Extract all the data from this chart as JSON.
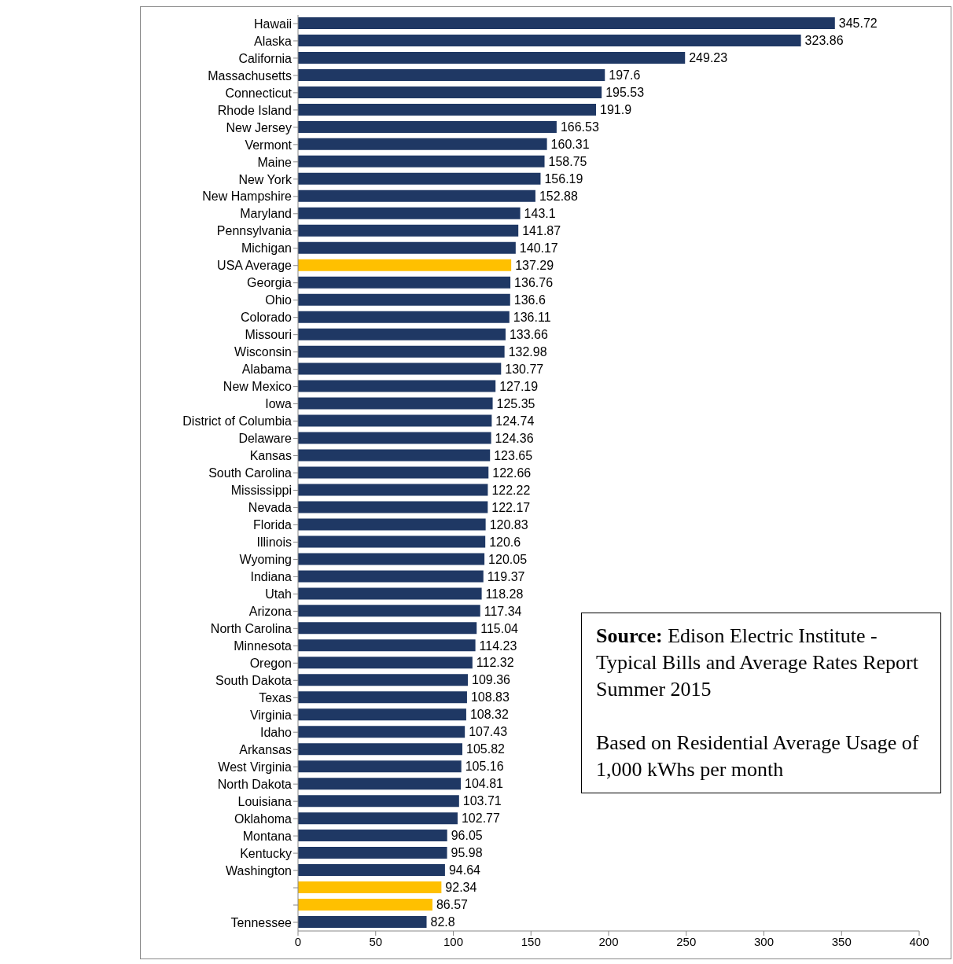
{
  "chart_data": {
    "type": "bar",
    "orientation": "horizontal",
    "categories": [
      "Hawaii",
      "Alaska",
      "California",
      "Massachusetts",
      "Connecticut",
      "Rhode Island",
      "New Jersey",
      "Vermont",
      "Maine",
      "New York",
      "New Hampshire",
      "Maryland",
      "Pennsylvania",
      "Michigan",
      "USA Average",
      "Georgia",
      "Ohio",
      "Colorado",
      "Missouri",
      "Wisconsin",
      "Alabama",
      "New Mexico",
      "Iowa",
      "District of Columbia",
      "Delaware",
      "Kansas",
      "South Carolina",
      "Mississippi",
      "Nevada",
      "Florida",
      "Illinois",
      "Wyoming",
      "Indiana",
      "Utah",
      "Arizona",
      "North Carolina",
      "Minnesota",
      "Oregon",
      "South Dakota",
      "Texas",
      "Virginia",
      "Idaho",
      "Arkansas",
      "West Virginia",
      "North Dakota",
      "Louisiana",
      "Oklahoma",
      "Montana",
      "Kentucky",
      "Washington",
      null,
      null,
      "Tennessee"
    ],
    "values": [
      345.72,
      323.86,
      249.23,
      197.6,
      195.53,
      191.9,
      166.53,
      160.31,
      158.75,
      156.19,
      152.88,
      143.1,
      141.87,
      140.17,
      137.29,
      136.76,
      136.6,
      136.11,
      133.66,
      132.98,
      130.77,
      127.19,
      125.35,
      124.74,
      124.36,
      123.65,
      122.66,
      122.22,
      122.17,
      120.83,
      120.6,
      120.05,
      119.37,
      118.28,
      117.34,
      115.04,
      114.23,
      112.32,
      109.36,
      108.83,
      108.32,
      107.43,
      105.82,
      105.16,
      104.81,
      103.71,
      102.77,
      96.05,
      95.98,
      94.64,
      92.34,
      86.57,
      82.8
    ],
    "colors": [
      "#1f3864",
      "#1f3864",
      "#1f3864",
      "#1f3864",
      "#1f3864",
      "#1f3864",
      "#1f3864",
      "#1f3864",
      "#1f3864",
      "#1f3864",
      "#1f3864",
      "#1f3864",
      "#1f3864",
      "#1f3864",
      "#ffc000",
      "#1f3864",
      "#1f3864",
      "#1f3864",
      "#1f3864",
      "#1f3864",
      "#1f3864",
      "#1f3864",
      "#1f3864",
      "#1f3864",
      "#1f3864",
      "#1f3864",
      "#1f3864",
      "#1f3864",
      "#1f3864",
      "#1f3864",
      "#1f3864",
      "#1f3864",
      "#1f3864",
      "#1f3864",
      "#1f3864",
      "#1f3864",
      "#1f3864",
      "#1f3864",
      "#1f3864",
      "#1f3864",
      "#1f3864",
      "#1f3864",
      "#1f3864",
      "#1f3864",
      "#1f3864",
      "#1f3864",
      "#1f3864",
      "#1f3864",
      "#1f3864",
      "#1f3864",
      "#ffc000",
      "#ffc000",
      "#1f3864"
    ],
    "xlim": [
      0,
      400
    ],
    "xticks": [
      0,
      50,
      100,
      150,
      200,
      250,
      300,
      350,
      400
    ],
    "data_labels": true,
    "grid": false,
    "legend": false,
    "annotations": [
      "Source: Edison Electric Institute - Typical Bills and Average Rates Report Summer 2015",
      "Based on Residential Average Usage of 1,000 kWhs per month"
    ]
  }
}
